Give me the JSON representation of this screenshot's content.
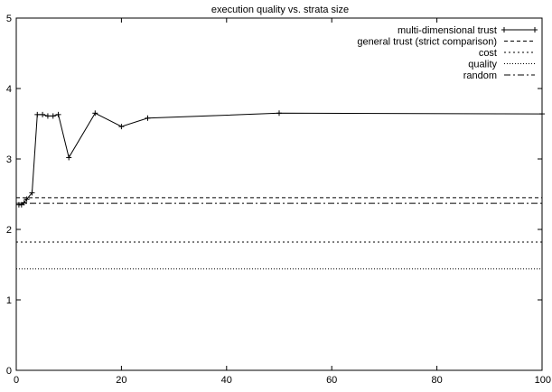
{
  "chart_data": {
    "type": "line",
    "title": "execution quality vs. strata size",
    "xlabel": "",
    "ylabel": "",
    "xlim": [
      0,
      100
    ],
    "ylim": [
      0,
      5
    ],
    "xticks": [
      0,
      20,
      40,
      60,
      80,
      100
    ],
    "yticks": [
      0,
      1,
      2,
      3,
      4,
      5
    ],
    "grid": false,
    "legend_position": "top-right",
    "series": [
      {
        "name": "multi-dimensional trust",
        "style": "solid-with-plus-markers",
        "x": [
          0.5,
          1,
          1.5,
          2,
          3,
          4,
          5,
          6,
          7,
          8,
          10,
          15,
          20,
          25,
          50,
          100
        ],
        "y": [
          2.35,
          2.35,
          2.38,
          2.43,
          2.52,
          3.63,
          3.63,
          3.61,
          3.61,
          3.63,
          3.02,
          3.65,
          3.46,
          3.58,
          3.65,
          3.64
        ]
      },
      {
        "name": "general trust (strict comparison)",
        "style": "dashed",
        "x": [
          0,
          100
        ],
        "y": [
          2.45,
          2.45
        ]
      },
      {
        "name": "cost",
        "style": "dotted",
        "x": [
          0,
          100
        ],
        "y": [
          1.82,
          1.82
        ]
      },
      {
        "name": "quality",
        "style": "fine-dotted",
        "x": [
          0,
          100
        ],
        "y": [
          1.44,
          1.44
        ]
      },
      {
        "name": "random",
        "style": "dash-dot",
        "x": [
          0,
          100
        ],
        "y": [
          2.37,
          2.37
        ]
      }
    ]
  }
}
